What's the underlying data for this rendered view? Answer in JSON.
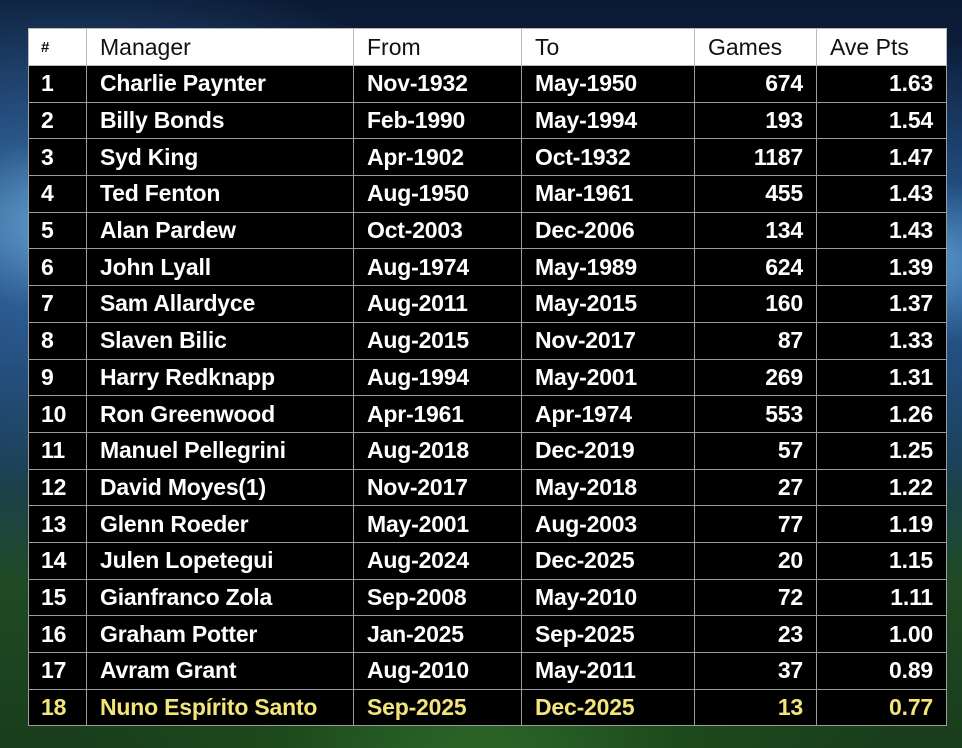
{
  "headers": [
    "#",
    "Manager",
    "From",
    "To",
    "Games",
    "Ave Pts"
  ],
  "rows": [
    {
      "rank": "1",
      "manager": "Charlie Paynter",
      "from": "Nov-1932",
      "to": "May-1950",
      "games": "674",
      "ave": "1.63"
    },
    {
      "rank": "2",
      "manager": "Billy Bonds",
      "from": "Feb-1990",
      "to": "May-1994",
      "games": "193",
      "ave": "1.54"
    },
    {
      "rank": "3",
      "manager": "Syd King",
      "from": "Apr-1902",
      "to": "Oct-1932",
      "games": "1187",
      "ave": "1.47"
    },
    {
      "rank": "4",
      "manager": "Ted Fenton",
      "from": "Aug-1950",
      "to": "Mar-1961",
      "games": "455",
      "ave": "1.43"
    },
    {
      "rank": "5",
      "manager": "Alan Pardew",
      "from": "Oct-2003",
      "to": "Dec-2006",
      "games": "134",
      "ave": "1.43"
    },
    {
      "rank": "6",
      "manager": "John Lyall",
      "from": "Aug-1974",
      "to": "May-1989",
      "games": "624",
      "ave": "1.39"
    },
    {
      "rank": "7",
      "manager": "Sam Allardyce",
      "from": "Aug-2011",
      "to": "May-2015",
      "games": "160",
      "ave": "1.37"
    },
    {
      "rank": "8",
      "manager": "Slaven Bilic",
      "from": "Aug-2015",
      "to": "Nov-2017",
      "games": "87",
      "ave": "1.33"
    },
    {
      "rank": "9",
      "manager": "Harry Redknapp",
      "from": "Aug-1994",
      "to": "May-2001",
      "games": "269",
      "ave": "1.31"
    },
    {
      "rank": "10",
      "manager": "Ron Greenwood",
      "from": "Apr-1961",
      "to": "Apr-1974",
      "games": "553",
      "ave": "1.26"
    },
    {
      "rank": "11",
      "manager": "Manuel Pellegrini",
      "from": "Aug-2018",
      "to": "Dec-2019",
      "games": "57",
      "ave": "1.25"
    },
    {
      "rank": "12",
      "manager": "David Moyes(1)",
      "from": "Nov-2017",
      "to": "May-2018",
      "games": "27",
      "ave": "1.22"
    },
    {
      "rank": "13",
      "manager": "Glenn Roeder",
      "from": "May-2001",
      "to": "Aug-2003",
      "games": "77",
      "ave": "1.19"
    },
    {
      "rank": "14",
      "manager": "Julen Lopetegui",
      "from": "Aug-2024",
      "to": "Dec-2025",
      "games": "20",
      "ave": "1.15"
    },
    {
      "rank": "15",
      "manager": "Gianfranco Zola",
      "from": "Sep-2008",
      "to": "May-2010",
      "games": "72",
      "ave": "1.11"
    },
    {
      "rank": "16",
      "manager": "Graham Potter",
      "from": "Jan-2025",
      "to": "Sep-2025",
      "games": "23",
      "ave": "1.00"
    },
    {
      "rank": "17",
      "manager": "Avram Grant",
      "from": "Aug-2010",
      "to": "May-2011",
      "games": "37",
      "ave": "0.89"
    },
    {
      "rank": "18",
      "manager": "Nuno Espírito Santo",
      "from": "Sep-2025",
      "to": "Dec-2025",
      "games": "13",
      "ave": "0.77"
    }
  ],
  "highlight_row_index": 17,
  "colors": {
    "highlight_text": "#f3e57a",
    "row_bg": "#000000",
    "header_bg": "#ffffff"
  }
}
